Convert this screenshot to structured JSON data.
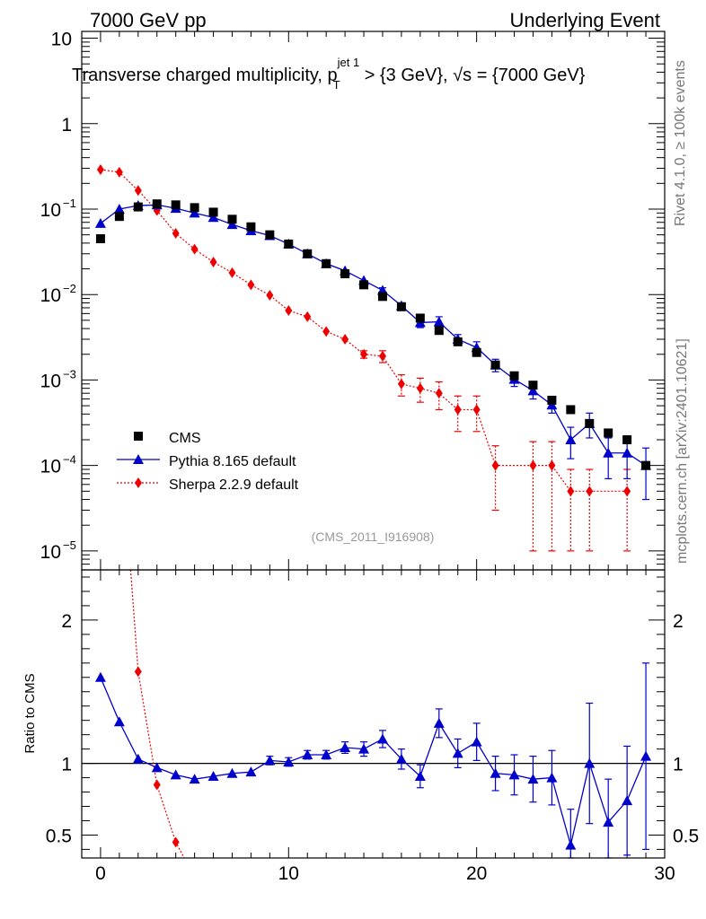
{
  "header": {
    "left": "7000 GeV pp",
    "right": "Underlying Event",
    "title_main": "Transverse charged multiplicity, p",
    "title_sup": "jet 1",
    "title_sub": "T",
    "title_rest": " > {3 GeV}, √s = {7000 GeV}",
    "side_rivet": "Rivet 4.1.0, ≥ 100k events",
    "side_mcplots": "mcplots.cern.ch [arXiv:2401.10621]",
    "analysis_id": "(CMS_2011_I916908)",
    "ratio_ylabel": "Ratio to CMS"
  },
  "colors": {
    "cms": "#000000",
    "pythia": "#0000cc",
    "sherpa": "#ee0000"
  },
  "chart_data": [
    {
      "type": "scatter",
      "panel": "main",
      "yscale": "log",
      "xlim": [
        -1,
        30
      ],
      "ylim": [
        6e-06,
        12
      ],
      "yticks": [
        {
          "v": 10,
          "b": "10",
          "e": ""
        },
        {
          "v": 1,
          "b": "1",
          "e": ""
        },
        {
          "v": 0.1,
          "b": "10",
          "e": "−1"
        },
        {
          "v": 0.01,
          "b": "10",
          "e": "−2"
        },
        {
          "v": 0.001,
          "b": "10",
          "e": "−3"
        },
        {
          "v": 0.0001,
          "b": "10",
          "e": "−4"
        },
        {
          "v": 1e-05,
          "b": "10",
          "e": "−5"
        }
      ],
      "legend": [
        "CMS",
        "Pythia 8.165 default",
        "Sherpa 2.2.9 default"
      ],
      "legend_position": "bottom-left",
      "series": [
        {
          "name": "CMS",
          "x": [
            0,
            1,
            2,
            3,
            4,
            5,
            6,
            7,
            8,
            9,
            10,
            11,
            12,
            13,
            14,
            15,
            16,
            17,
            18,
            19,
            20,
            21,
            22,
            23,
            24,
            25,
            26,
            27,
            28,
            29
          ],
          "values": [
            0.045,
            0.082,
            0.106,
            0.115,
            0.112,
            0.104,
            0.092,
            0.076,
            0.062,
            0.05,
            0.039,
            0.03,
            0.023,
            0.0175,
            0.013,
            0.0095,
            0.0072,
            0.0053,
            0.0038,
            0.0028,
            0.0021,
            0.0015,
            0.00112,
            0.00087,
            0.00058,
            0.00045,
            0.00031,
            0.00024,
            0.0002,
            0.0001
          ]
        },
        {
          "name": "Pythia 8.165 default",
          "x": [
            0,
            1,
            2,
            3,
            4,
            5,
            6,
            7,
            8,
            9,
            10,
            11,
            12,
            13,
            14,
            15,
            16,
            17,
            18,
            19,
            20,
            21,
            22,
            23,
            24,
            25,
            26,
            27,
            28,
            29
          ],
          "values": [
            0.068,
            0.1,
            0.11,
            0.112,
            0.102,
            0.09,
            0.08,
            0.066,
            0.056,
            0.049,
            0.039,
            0.03,
            0.023,
            0.019,
            0.0146,
            0.0112,
            0.0074,
            0.0047,
            0.0048,
            0.003,
            0.0024,
            0.0015,
            0.00102,
            0.00075,
            0.00051,
            0.0002,
            0.00031,
            0.00014,
            0.00014,
            0.0001
          ],
          "errors": [
            0,
            0,
            0,
            0,
            0,
            0,
            0,
            0,
            0,
            0,
            0,
            0,
            0,
            0,
            0,
            0.0008,
            0.0006,
            0.0006,
            0.0007,
            0.0004,
            0.0004,
            0.00025,
            0.00018,
            0.00015,
            0.0001,
            8e-05,
            0.0001,
            7e-05,
            7e-05,
            6e-05
          ]
        },
        {
          "name": "Sherpa 2.2.9 default",
          "x": [
            0,
            1,
            2,
            3,
            4,
            5,
            6,
            7,
            8,
            9,
            10,
            11,
            12,
            13,
            14,
            15,
            16,
            17,
            18,
            19,
            20,
            21,
            23,
            24,
            25,
            26,
            28
          ],
          "values": [
            0.29,
            0.27,
            0.165,
            0.096,
            0.052,
            0.034,
            0.024,
            0.018,
            0.013,
            0.0098,
            0.0065,
            0.0055,
            0.0037,
            0.003,
            0.002,
            0.0019,
            0.0009,
            0.0008,
            0.0007,
            0.00045,
            0.00045,
            0.0001,
            0.0001,
            0.0001,
            5e-05,
            5e-05,
            5e-05
          ],
          "errors": [
            0,
            0,
            0,
            0,
            0,
            0,
            0,
            0,
            0,
            0,
            0,
            0,
            0,
            0,
            0.0002,
            0.0003,
            0.00025,
            0.00025,
            0.00025,
            0.0002,
            0.0002,
            7e-05,
            9e-05,
            9e-05,
            4e-05,
            4e-05,
            4e-05
          ]
        }
      ]
    },
    {
      "type": "line",
      "panel": "ratio",
      "ylabel": "Ratio to CMS",
      "xlim": [
        -1,
        30
      ],
      "ylim": [
        0.34,
        2.35
      ],
      "xticks": [
        0,
        10,
        20,
        30
      ],
      "yticks": [
        0.5,
        1,
        2
      ],
      "reference_line": 1,
      "series": [
        {
          "name": "Pythia 8.165 default",
          "x": [
            0,
            1,
            2,
            3,
            4,
            5,
            6,
            7,
            8,
            9,
            10,
            11,
            12,
            13,
            14,
            15,
            16,
            17,
            18,
            19,
            20,
            21,
            22,
            23,
            24,
            25,
            26,
            27,
            28,
            29
          ],
          "values": [
            1.6,
            1.29,
            1.03,
            0.97,
            0.92,
            0.89,
            0.91,
            0.93,
            0.94,
            1.02,
            1.01,
            1.06,
            1.06,
            1.11,
            1.1,
            1.17,
            1.03,
            0.91,
            1.28,
            1.07,
            1.15,
            0.93,
            0.92,
            0.89,
            0.9,
            0.43,
            1.0,
            0.59,
            0.74,
            1.05
          ],
          "errors": [
            0,
            0,
            0,
            0,
            0,
            0,
            0,
            0,
            0,
            0.03,
            0.03,
            0.03,
            0.03,
            0.04,
            0.05,
            0.06,
            0.07,
            0.08,
            0.1,
            0.1,
            0.13,
            0.12,
            0.14,
            0.16,
            0.19,
            0.25,
            0.42,
            0.3,
            0.38,
            0.65
          ]
        },
        {
          "name": "Sherpa 2.2.9 default",
          "x": [
            1.6,
            2,
            3,
            4,
            4.45
          ],
          "values": [
            2.35,
            1.64,
            0.85,
            0.45,
            0.34
          ]
        }
      ]
    }
  ]
}
